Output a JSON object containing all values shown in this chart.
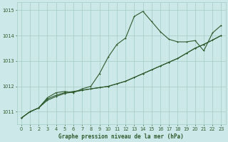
{
  "title": "Graphe pression niveau de la mer (hPa)",
  "bg_color": "#cde8e8",
  "grid_color": "#aacfca",
  "line_color": "#2d5a2d",
  "xlim": [
    -0.5,
    23.5
  ],
  "ylim": [
    1010.5,
    1015.3
  ],
  "yticks": [
    1011,
    1012,
    1013,
    1014,
    1015
  ],
  "xticks": [
    0,
    1,
    2,
    3,
    4,
    5,
    6,
    7,
    8,
    9,
    10,
    11,
    12,
    13,
    14,
    15,
    16,
    17,
    18,
    19,
    20,
    21,
    22,
    23
  ],
  "series1_x": [
    0,
    1,
    2,
    3,
    4,
    5,
    6,
    7,
    8,
    9,
    10,
    11,
    12,
    13,
    14,
    15,
    16,
    17,
    18,
    19,
    20,
    21,
    22,
    23
  ],
  "series1_y": [
    1010.75,
    1011.0,
    1011.15,
    1011.5,
    1011.65,
    1011.75,
    1011.8,
    1011.85,
    1011.9,
    1011.95,
    1012.0,
    1012.1,
    1012.2,
    1012.35,
    1012.5,
    1012.65,
    1012.8,
    1012.95,
    1013.1,
    1013.3,
    1013.5,
    1013.65,
    1013.82,
    1014.0
  ],
  "series2_x": [
    0,
    1,
    2,
    3,
    4,
    5,
    6,
    7,
    8,
    9,
    10,
    11,
    12,
    13,
    14,
    15,
    16,
    17,
    18,
    19,
    20,
    21,
    22,
    23
  ],
  "series2_y": [
    1010.75,
    1011.0,
    1011.15,
    1011.45,
    1011.6,
    1011.72,
    1011.78,
    1011.84,
    1011.9,
    1011.95,
    1012.0,
    1012.1,
    1012.2,
    1012.35,
    1012.5,
    1012.65,
    1012.8,
    1012.95,
    1013.1,
    1013.3,
    1013.5,
    1013.65,
    1013.82,
    1014.0
  ],
  "series3_x": [
    0,
    1,
    2,
    3,
    4,
    5,
    6,
    7,
    8,
    9,
    10,
    11,
    12,
    13,
    14,
    15,
    16,
    17,
    18,
    19,
    20,
    21,
    22,
    23
  ],
  "series3_y": [
    1010.75,
    1011.0,
    1011.15,
    1011.55,
    1011.75,
    1011.8,
    1011.75,
    1011.9,
    1012.0,
    1012.5,
    1013.15,
    1013.65,
    1013.9,
    1014.75,
    1014.95,
    1014.55,
    1014.15,
    1013.85,
    1013.75,
    1013.75,
    1013.8,
    1013.4,
    1014.1,
    1014.4
  ]
}
